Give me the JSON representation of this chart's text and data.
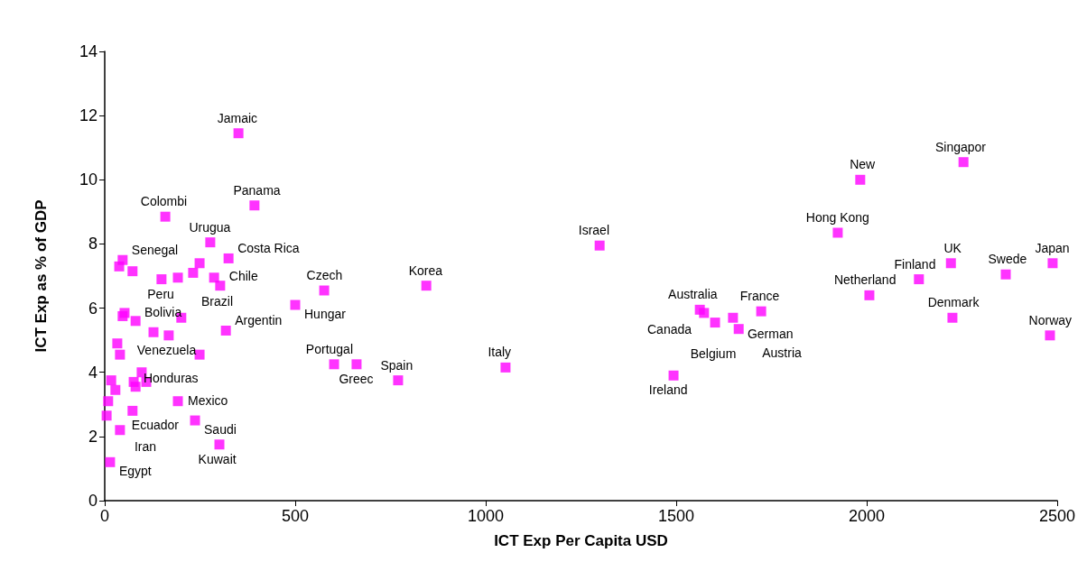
{
  "chart_data": {
    "type": "scatter",
    "xlabel": "ICT Exp Per Capita USD",
    "ylabel": "ICT Exp as % of GDP",
    "x": [
      159,
      393,
      277,
      325,
      47,
      38,
      73,
      249,
      232,
      149,
      192,
      287,
      303,
      52,
      47,
      81,
      201,
      318,
      128,
      168,
      33,
      40,
      249,
      97,
      17,
      76,
      109,
      81,
      28,
      9,
      192,
      73,
      5,
      237,
      40,
      301,
      14,
      351,
      576,
      500,
      602,
      661,
      844,
      770,
      1052,
      1299,
      1562,
      1573,
      1602,
      1649,
      1664,
      1723,
      2007,
      1493,
      1983,
      2254,
      1924,
      2221,
      2365,
      2488,
      2137,
      2225,
      2481
    ],
    "values": [
      8.85,
      9.2,
      8.05,
      7.55,
      7.5,
      7.3,
      7.15,
      7.4,
      7.1,
      6.9,
      6.95,
      6.95,
      6.7,
      5.85,
      5.75,
      5.6,
      5.7,
      5.3,
      5.25,
      5.15,
      4.9,
      4.55,
      4.55,
      4.0,
      3.75,
      3.7,
      3.7,
      3.55,
      3.45,
      3.1,
      3.1,
      2.8,
      2.65,
      2.5,
      2.2,
      1.75,
      1.2,
      11.45,
      6.55,
      6.1,
      4.25,
      4.25,
      6.7,
      3.75,
      4.15,
      7.95,
      5.95,
      5.85,
      5.55,
      5.7,
      5.35,
      5.9,
      6.4,
      3.9,
      10.0,
      10.55,
      8.35,
      7.4,
      7.05,
      7.4,
      6.9,
      5.7,
      5.15
    ],
    "color": "#ff00ff",
    "marker": "square",
    "grid": false,
    "xlim": [
      0,
      2500
    ],
    "xticks": [
      0,
      500,
      1000,
      1500,
      2000,
      2500
    ],
    "ylim": [
      0,
      14
    ],
    "yticks": [
      0,
      2,
      4,
      6,
      8,
      10,
      12,
      14
    ],
    "annotations": [
      {
        "text": "Colombi",
        "x": 159,
        "y": 8.85
      },
      {
        "text": "Panama",
        "x": 393,
        "y": 9.2
      },
      {
        "text": "Urugua",
        "x": 277,
        "y": 8.05
      },
      {
        "text": "Costa Rica",
        "x": 325,
        "y": 7.55
      },
      {
        "text": "Senegal",
        "x": 47,
        "y": 7.5
      },
      {
        "text": "Peru",
        "x": 149,
        "y": 6.9
      },
      {
        "text": "Brazil",
        "x": 192,
        "y": 6.95
      },
      {
        "text": "Chile",
        "x": 303,
        "y": 6.7
      },
      {
        "text": "Bolivia",
        "x": 52,
        "y": 5.85
      },
      {
        "text": "Argentin",
        "x": 318,
        "y": 5.3
      },
      {
        "text": "Venezuela",
        "x": 168,
        "y": 5.15
      },
      {
        "text": "Honduras",
        "x": 40,
        "y": 4.55
      },
      {
        "text": "Ecuador",
        "x": 9,
        "y": 3.1
      },
      {
        "text": "Mexico",
        "x": 192,
        "y": 3.1
      },
      {
        "text": "Saudi",
        "x": 237,
        "y": 2.5
      },
      {
        "text": "Iran",
        "x": 40,
        "y": 2.2
      },
      {
        "text": "Kuwait",
        "x": 301,
        "y": 1.75
      },
      {
        "text": "Egypt",
        "x": 14,
        "y": 1.2
      },
      {
        "text": "Jamaic",
        "x": 351,
        "y": 11.45
      },
      {
        "text": "Czech",
        "x": 576,
        "y": 6.55
      },
      {
        "text": "Hungar",
        "x": 500,
        "y": 6.1
      },
      {
        "text": "Portugal",
        "x": 602,
        "y": 4.25
      },
      {
        "text": "Greec",
        "x": 661,
        "y": 4.25
      },
      {
        "text": "Korea",
        "x": 844,
        "y": 6.7
      },
      {
        "text": "Spain",
        "x": 770,
        "y": 3.75
      },
      {
        "text": "Italy",
        "x": 1052,
        "y": 4.15
      },
      {
        "text": "Israel",
        "x": 1299,
        "y": 7.95
      },
      {
        "text": "Australia",
        "x": 1562,
        "y": 5.95
      },
      {
        "text": "Canada",
        "x": 1573,
        "y": 5.85
      },
      {
        "text": "Belgium",
        "x": 1602,
        "y": 5.55
      },
      {
        "text": "German",
        "x": 1649,
        "y": 5.7
      },
      {
        "text": "Austria",
        "x": 1664,
        "y": 5.35
      },
      {
        "text": "France",
        "x": 1723,
        "y": 5.9
      },
      {
        "text": "Netherland",
        "x": 2007,
        "y": 6.4
      },
      {
        "text": "Ireland",
        "x": 1493,
        "y": 3.9
      },
      {
        "text": "New",
        "x": 1983,
        "y": 10.0
      },
      {
        "text": "Singapor",
        "x": 2254,
        "y": 10.55
      },
      {
        "text": "Hong Kong",
        "x": 1924,
        "y": 8.35
      },
      {
        "text": "UK",
        "x": 2221,
        "y": 7.4
      },
      {
        "text": "Swede",
        "x": 2365,
        "y": 7.05
      },
      {
        "text": "Japan",
        "x": 2488,
        "y": 7.4
      },
      {
        "text": "Finland",
        "x": 2137,
        "y": 6.9
      },
      {
        "text": "Denmark",
        "x": 2225,
        "y": 5.7
      },
      {
        "text": "Norway",
        "x": 2481,
        "y": 5.15
      }
    ]
  }
}
